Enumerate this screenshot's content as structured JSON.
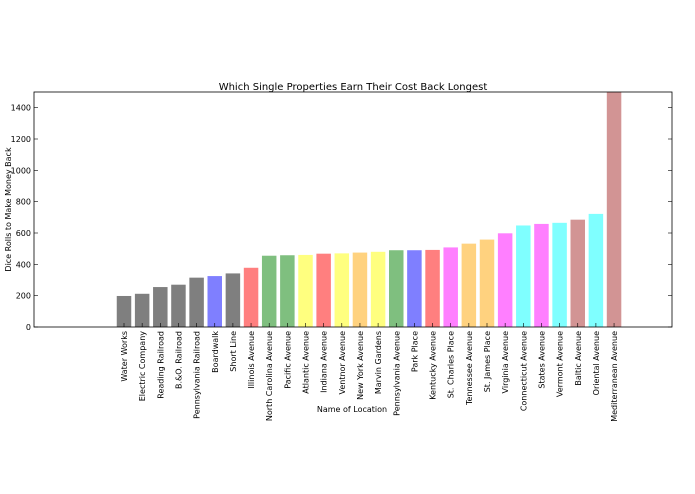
{
  "chart_data": {
    "type": "bar",
    "title": "Which Single Properties Earn Their Cost Back Longest",
    "xlabel": "Name of Location",
    "ylabel": "Dice Rolls to Make Money Back",
    "ylim": [
      0,
      1500
    ],
    "yticks": [
      0,
      200,
      400,
      600,
      800,
      1000,
      1200,
      1400
    ],
    "grid": false,
    "bar_alpha": 0.5,
    "categories": [
      "Water Works",
      "Electric Company",
      "Reading Railroad",
      "B.&O. Railroad",
      "Pennsylvania Railroad",
      "Boardwalk",
      "Short Line",
      "Illinois Avenue",
      "North Carolina Avenue",
      "Pacific Avenue",
      "Atlantic Avenue",
      "Indiana Avenue",
      "Ventnor Avenue",
      "New York Avenue",
      "Marvin Gardens",
      "Pennsylvania Avenue",
      "Park Place",
      "Kentucky Avenue",
      "St. Charles Place",
      "Tennessee Avenue",
      "St. James Place",
      "Virginia Avenue",
      "Connecticut Avenue",
      "States Avenue",
      "Vermont Avenue",
      "Baltic Avenue",
      "Oriental Avenue",
      "Mediterranean Avenue"
    ],
    "values": [
      198,
      212,
      255,
      270,
      315,
      325,
      342,
      378,
      455,
      458,
      460,
      468,
      470,
      475,
      480,
      490,
      490,
      492,
      508,
      532,
      558,
      598,
      648,
      658,
      665,
      685,
      722,
      1500
    ],
    "colors": [
      "#000000",
      "#000000",
      "#000000",
      "#000000",
      "#000000",
      "#0000ff",
      "#000000",
      "#ff0000",
      "#008000",
      "#008000",
      "#ffff00",
      "#ff0000",
      "#ffff00",
      "#ffa500",
      "#ffff00",
      "#008000",
      "#0000ff",
      "#ff0000",
      "#ff00ff",
      "#ffa500",
      "#ffa500",
      "#ff00ff",
      "#00ffff",
      "#ff00ff",
      "#00ffff",
      "#a52a2a",
      "#00ffff",
      "#a52a2a"
    ]
  }
}
